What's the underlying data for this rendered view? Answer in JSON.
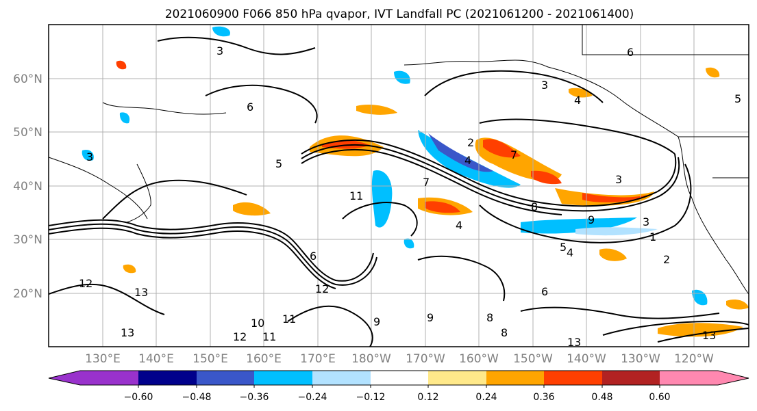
{
  "title": "2021060900 F066 850 hPa qvapor, IVT Landfall PC (2021061200 - 2021061400)",
  "map": {
    "lat_labels": [
      "60°N",
      "50°N",
      "40°N",
      "30°N",
      "20°N"
    ],
    "lon_labels": [
      "130°E",
      "140°E",
      "150°E",
      "160°E",
      "170°E",
      "180°W",
      "170°W",
      "160°W",
      "150°W",
      "140°W",
      "130°W",
      "120°W"
    ],
    "contour_labels": [
      "3",
      "6",
      "3",
      "4",
      "5",
      "6",
      "5",
      "3",
      "2",
      "4",
      "7",
      "8",
      "3",
      "11",
      "7",
      "9",
      "4",
      "6",
      "3",
      "1",
      "2",
      "13",
      "12",
      "13",
      "12",
      "10",
      "11",
      "11",
      "13",
      "12",
      "9",
      "9",
      "8",
      "6",
      "13",
      "8",
      "5",
      "4"
    ],
    "fill_colors": {
      "neg_strong": "#3a57c9",
      "neg_mid": "#00bfff",
      "neg_weak": "#b2e2ff",
      "pos_weak": "#ffe98a",
      "pos_mid": "#ffa500",
      "pos_strong": "#ff3f00",
      "pos_max": "#b22222"
    }
  },
  "colorbar": {
    "tick_labels": [
      "−0.60",
      "−0.48",
      "−0.36",
      "−0.24",
      "−0.12",
      "0.12",
      "0.24",
      "0.36",
      "0.48",
      "0.60"
    ],
    "colors": [
      "#9932cc",
      "#00008b",
      "#3a57c9",
      "#00bfff",
      "#b2e2ff",
      "#ffffff",
      "#ffe98a",
      "#ffa500",
      "#ff3f00",
      "#b22222",
      "#ff88b0"
    ]
  }
}
